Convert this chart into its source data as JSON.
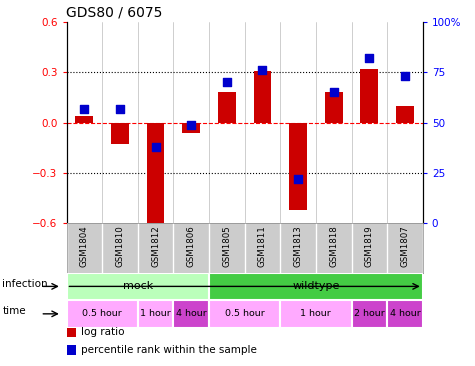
{
  "title": "GDS80 / 6075",
  "samples": [
    "GSM1804",
    "GSM1810",
    "GSM1812",
    "GSM1806",
    "GSM1805",
    "GSM1811",
    "GSM1813",
    "GSM1818",
    "GSM1819",
    "GSM1807"
  ],
  "log_ratio": [
    0.04,
    -0.13,
    -0.62,
    -0.06,
    0.18,
    0.31,
    -0.52,
    0.18,
    0.32,
    0.1
  ],
  "percentile": [
    57,
    57,
    38,
    49,
    70,
    76,
    22,
    65,
    82,
    73
  ],
  "ylim_left": [
    -0.6,
    0.6
  ],
  "ylim_right": [
    0,
    100
  ],
  "yticks_left": [
    -0.6,
    -0.3,
    0.0,
    0.3,
    0.6
  ],
  "yticks_right": [
    0,
    25,
    50,
    75,
    100
  ],
  "ytick_labels_right": [
    "0",
    "25",
    "50",
    "75",
    "100%"
  ],
  "infection_groups": [
    {
      "label": "mock",
      "start": 0,
      "end": 4,
      "color": "#bbffbb"
    },
    {
      "label": "wildtype",
      "start": 4,
      "end": 10,
      "color": "#44cc44"
    }
  ],
  "time_groups": [
    {
      "label": "0.5 hour",
      "start": 0,
      "end": 2,
      "color": "#ffaaff"
    },
    {
      "label": "1 hour",
      "start": 2,
      "end": 3,
      "color": "#ffaaff"
    },
    {
      "label": "4 hour",
      "start": 3,
      "end": 4,
      "color": "#cc44cc"
    },
    {
      "label": "0.5 hour",
      "start": 4,
      "end": 6,
      "color": "#ffaaff"
    },
    {
      "label": "1 hour",
      "start": 6,
      "end": 8,
      "color": "#ffaaff"
    },
    {
      "label": "2 hour",
      "start": 8,
      "end": 9,
      "color": "#cc44cc"
    },
    {
      "label": "4 hour",
      "start": 9,
      "end": 10,
      "color": "#cc44cc"
    }
  ],
  "bar_color": "#cc0000",
  "dot_color": "#0000cc",
  "sample_bg": "#cccccc",
  "legend_items": [
    {
      "label": "log ratio",
      "color": "#cc0000"
    },
    {
      "label": "percentile rank within the sample",
      "color": "#0000cc"
    }
  ]
}
